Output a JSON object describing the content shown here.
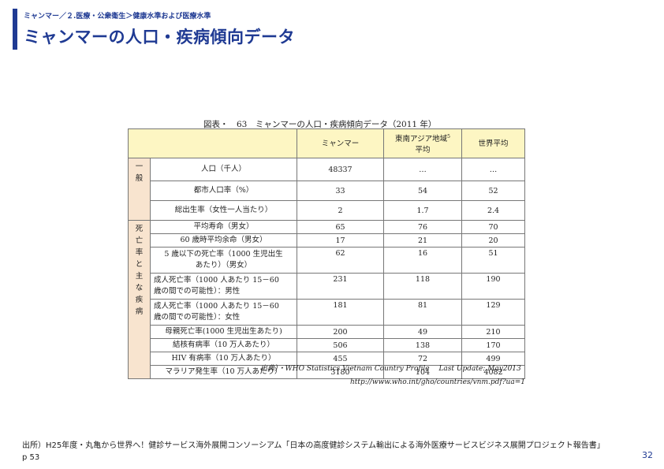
{
  "header": {
    "breadcrumb": "ミャンマー／２.医療・公衆衛生＞健康水準および医療水準",
    "title": "ミャンマーの人口・疾病傾向データ"
  },
  "figure": {
    "title": "図表・　63　ミャンマーの人口・疾病傾向データ（2011 年）",
    "columns": [
      "ミャンマー",
      "東南アジア地域",
      "世界平均"
    ],
    "column2_sub": "平均",
    "column2_sup": "5",
    "groups": [
      {
        "label": [
          "一",
          "般"
        ],
        "rows": [
          {
            "item": "人口（千人）",
            "values": [
              "48337",
              "…",
              "…"
            ]
          },
          {
            "item": "都市人口率（%）",
            "values": [
              "33",
              "54",
              "52"
            ]
          },
          {
            "item": "総出生率（女性一人当たり）",
            "values": [
              "2",
              "1.7",
              "2.4"
            ]
          }
        ]
      },
      {
        "label": [
          "死",
          "亡",
          "率",
          "と",
          "主",
          "な",
          "疾",
          "病"
        ],
        "rows": [
          {
            "item": "平均寿命（男女）",
            "values": [
              "65",
              "76",
              "70"
            ]
          },
          {
            "item": "60 歳時平均余命（男女）",
            "values": [
              "17",
              "21",
              "20"
            ]
          },
          {
            "item_lines": [
              "5 歳以下の死亡率（1000 生児出生",
              "あたり）（男女）"
            ],
            "values": [
              "62",
              "16",
              "51"
            ]
          },
          {
            "item_lines": [
              "成人死亡率（1000 人あたり 15－60",
              "歳の間での可能性）：男性"
            ],
            "values": [
              "231",
              "118",
              "190"
            ]
          },
          {
            "item_lines": [
              "成人死亡率（1000 人あたり 15－60",
              "歳の間での可能性）：女性"
            ],
            "values": [
              "181",
              "81",
              "129"
            ]
          },
          {
            "item": "母親死亡率(1000 生児出生あたり)",
            "values": [
              "200",
              "49",
              "210"
            ]
          },
          {
            "item": "結核有病率（10 万人あたり）",
            "values": [
              "506",
              "138",
              "170"
            ]
          },
          {
            "item": "HIV 有病率（10 万人あたり）",
            "values": [
              "455",
              "72",
              "499"
            ]
          },
          {
            "item": "マラリア発生率（10 万人あたり）",
            "values": [
              "3180",
              "104",
              "4082"
            ]
          }
        ]
      }
    ],
    "source_line": "出典）・WHO Statistics Vietnam Country Profile　 Last Update: May2013",
    "source_url": "http://www.who.int/gho/countries/vnm.pdf?ua=1"
  },
  "footer": {
    "source": "出所）H25年度・丸亀から世界へ！健診サービス海外展開コンソーシアム「日本の高度健診システム輸出による海外医療サービスビジネス展開プロジェクト報告書」p 53",
    "page_number": "32"
  }
}
